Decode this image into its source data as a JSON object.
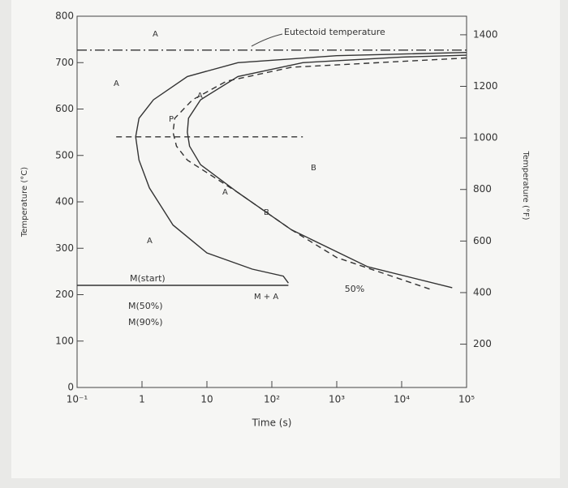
{
  "chart_data": {
    "type": "line",
    "xscale": "log",
    "xlabel": "Time (s)",
    "ylabel": "Temperature (°C)",
    "y2label": "Temperature (°F)",
    "xlim": [
      0.1,
      100000
    ],
    "xticks": [
      {
        "value": 0.1,
        "label": "10⁻¹"
      },
      1,
      10,
      {
        "value": 100,
        "label": "10²"
      },
      {
        "value": 1000,
        "label": "10³"
      },
      {
        "value": 10000,
        "label": "10⁴"
      },
      {
        "value": 100000,
        "label": "10⁵"
      }
    ],
    "ylim": [
      0,
      800
    ],
    "yticks": [
      0,
      100,
      200,
      300,
      400,
      500,
      600,
      700,
      800
    ],
    "y2lim": [
      32,
      1472
    ],
    "y2ticks": [
      200,
      400,
      600,
      800,
      1000,
      1200,
      1400
    ],
    "series": [
      {
        "color": "#333333",
        "style": "dashdot",
        "x": [
          0.1,
          100000
        ],
        "values": [
          727,
          727
        ]
      },
      {
        "color": "#333333",
        "style": "solid",
        "x": [
          100000,
          1000,
          30,
          5,
          1.5,
          0.9,
          0.8,
          0.9,
          1.3,
          3,
          10,
          50,
          150,
          180
        ],
        "values": [
          722,
          715,
          700,
          670,
          620,
          580,
          540,
          490,
          430,
          350,
          290,
          255,
          240,
          225
        ]
      },
      {
        "name": "50%",
        "color": "#333333",
        "style": "dashed",
        "x": [
          100000,
          200,
          20,
          6,
          3.2,
          3,
          3.4,
          5,
          30,
          200,
          1000,
          30000
        ],
        "values": [
          710,
          690,
          660,
          620,
          580,
          550,
          520,
          490,
          420,
          340,
          280,
          210
        ]
      },
      {
        "color": "#333333",
        "style": "solid",
        "x": [
          100000,
          10000,
          300,
          30,
          8,
          5.2,
          5,
          5.4,
          8,
          30,
          200,
          3000,
          60000
        ],
        "values": [
          716,
          712,
          700,
          670,
          620,
          580,
          550,
          520,
          480,
          420,
          340,
          260,
          215
        ]
      },
      {
        "color": "#333333",
        "style": "solid",
        "x": [
          0.1,
          180
        ],
        "values": [
          220,
          220
        ]
      },
      {
        "color": "#333333",
        "style": "dashed",
        "x": [
          0.4,
          300
        ],
        "values": [
          540,
          540
        ]
      }
    ],
    "annotations": [
      "Eutectoid temperature",
      "A",
      "A",
      "P",
      "A",
      "B",
      "A",
      "B",
      "A",
      "M + A",
      "M(start)",
      "M(50%)",
      "M(90%)"
    ]
  }
}
